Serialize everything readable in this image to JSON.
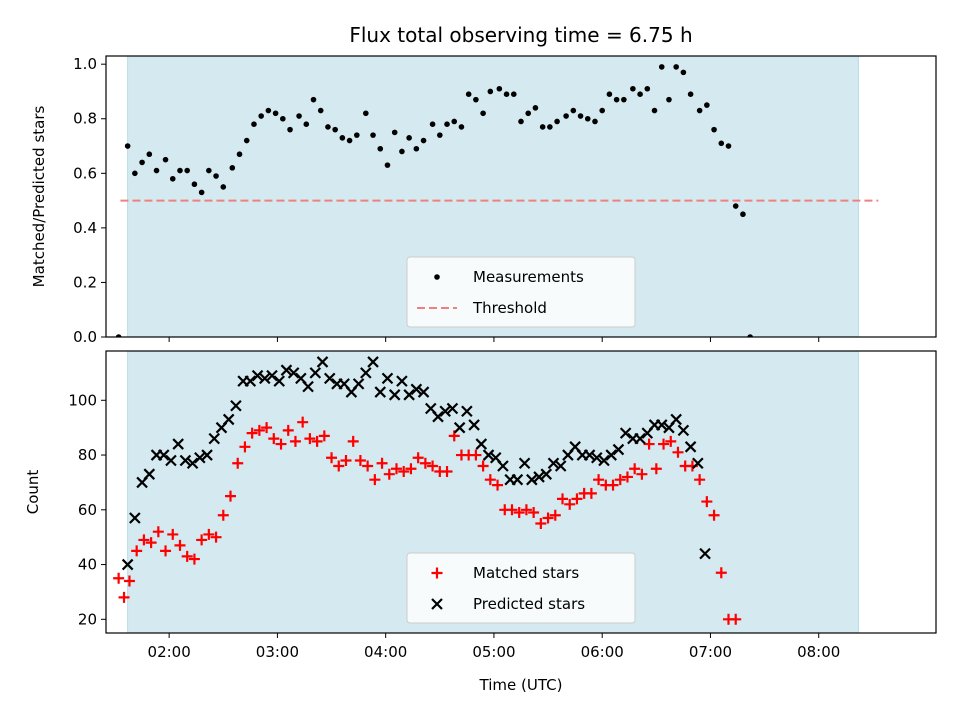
{
  "chart_data": [
    {
      "type": "scatter",
      "title": "Flux total observing time = 6.75 h",
      "xlabel": "",
      "ylabel": "Matched/Predicted stars",
      "xlim": [
        "01:25",
        "09:05"
      ],
      "ylim": [
        0,
        1.03
      ],
      "yticks": [
        "0.0",
        "0.2",
        "0.4",
        "0.6",
        "0.8",
        "1.0"
      ],
      "shaded_span": [
        "01:37",
        "08:22"
      ],
      "shade_color": "#d4eaf0",
      "legend_position": "lower center",
      "series": [
        {
          "name": "Measurements",
          "marker": "dot",
          "color": "#000000",
          "points": [
            [
              "01:32",
              0.0
            ],
            [
              "01:37",
              0.7
            ],
            [
              "01:41",
              0.6
            ],
            [
              "01:45",
              0.64
            ],
            [
              "01:49",
              0.67
            ],
            [
              "01:53",
              0.61
            ],
            [
              "01:58",
              0.65
            ],
            [
              "02:02",
              0.58
            ],
            [
              "02:06",
              0.61
            ],
            [
              "02:10",
              0.61
            ],
            [
              "02:14",
              0.56
            ],
            [
              "02:18",
              0.53
            ],
            [
              "02:22",
              0.61
            ],
            [
              "02:26",
              0.59
            ],
            [
              "02:30",
              0.55
            ],
            [
              "02:35",
              0.62
            ],
            [
              "02:39",
              0.67
            ],
            [
              "02:43",
              0.72
            ],
            [
              "02:47",
              0.78
            ],
            [
              "02:51",
              0.81
            ],
            [
              "02:55",
              0.83
            ],
            [
              "02:59",
              0.82
            ],
            [
              "03:03",
              0.8
            ],
            [
              "03:07",
              0.76
            ],
            [
              "03:12",
              0.81
            ],
            [
              "03:16",
              0.78
            ],
            [
              "03:20",
              0.87
            ],
            [
              "03:24",
              0.83
            ],
            [
              "03:28",
              0.77
            ],
            [
              "03:32",
              0.76
            ],
            [
              "03:36",
              0.73
            ],
            [
              "03:40",
              0.72
            ],
            [
              "03:44",
              0.74
            ],
            [
              "03:49",
              0.82
            ],
            [
              "03:53",
              0.74
            ],
            [
              "03:57",
              0.69
            ],
            [
              "04:01",
              0.63
            ],
            [
              "04:05",
              0.75
            ],
            [
              "04:09",
              0.68
            ],
            [
              "04:13",
              0.73
            ],
            [
              "04:17",
              0.69
            ],
            [
              "04:21",
              0.72
            ],
            [
              "04:26",
              0.78
            ],
            [
              "04:30",
              0.74
            ],
            [
              "04:34",
              0.78
            ],
            [
              "04:38",
              0.79
            ],
            [
              "04:42",
              0.77
            ],
            [
              "04:46",
              0.89
            ],
            [
              "04:50",
              0.87
            ],
            [
              "04:54",
              0.82
            ],
            [
              "04:58",
              0.9
            ],
            [
              "05:03",
              0.91
            ],
            [
              "05:07",
              0.89
            ],
            [
              "05:11",
              0.89
            ],
            [
              "05:15",
              0.79
            ],
            [
              "05:19",
              0.82
            ],
            [
              "05:23",
              0.84
            ],
            [
              "05:27",
              0.77
            ],
            [
              "05:31",
              0.77
            ],
            [
              "05:35",
              0.79
            ],
            [
              "05:40",
              0.81
            ],
            [
              "05:44",
              0.83
            ],
            [
              "05:48",
              0.81
            ],
            [
              "05:52",
              0.8
            ],
            [
              "05:56",
              0.79
            ],
            [
              "06:00",
              0.83
            ],
            [
              "06:04",
              0.89
            ],
            [
              "06:08",
              0.87
            ],
            [
              "06:12",
              0.87
            ],
            [
              "06:17",
              0.91
            ],
            [
              "06:21",
              0.89
            ],
            [
              "06:25",
              0.91
            ],
            [
              "06:29",
              0.83
            ],
            [
              "06:33",
              0.99
            ],
            [
              "06:37",
              0.87
            ],
            [
              "06:41",
              0.99
            ],
            [
              "06:45",
              0.97
            ],
            [
              "06:49",
              0.89
            ],
            [
              "06:54",
              0.83
            ],
            [
              "06:58",
              0.85
            ],
            [
              "07:02",
              0.76
            ],
            [
              "07:06",
              0.71
            ],
            [
              "07:10",
              0.7
            ],
            [
              "07:14",
              0.48
            ],
            [
              "07:18",
              0.45
            ],
            [
              "07:22",
              0.0
            ]
          ]
        },
        {
          "name": "Threshold",
          "line_style": "dashed",
          "color": "#f08080",
          "points": [
            [
              "01:33",
              0.5
            ],
            [
              "08:33",
              0.5
            ]
          ]
        }
      ]
    },
    {
      "type": "scatter",
      "title": "",
      "xlabel": "Time (UTC)",
      "ylabel": "Count",
      "xlim": [
        "01:25",
        "09:05"
      ],
      "ylim": [
        15,
        118
      ],
      "yticks": [
        "20",
        "40",
        "60",
        "80",
        "100"
      ],
      "xticks": [
        "02:00",
        "03:00",
        "04:00",
        "05:00",
        "06:00",
        "07:00",
        "08:00"
      ],
      "shaded_span": [
        "01:37",
        "08:22"
      ],
      "shade_color": "#d4eaf0",
      "legend_position": "lower center",
      "series": [
        {
          "name": "Matched stars",
          "marker": "plus",
          "color": "#ff0000",
          "points": [
            [
              "01:32",
              35
            ],
            [
              "01:35",
              28
            ],
            [
              "01:38",
              34
            ],
            [
              "01:42",
              45
            ],
            [
              "01:46",
              49
            ],
            [
              "01:50",
              48
            ],
            [
              "01:54",
              52
            ],
            [
              "01:58",
              45
            ],
            [
              "02:02",
              51
            ],
            [
              "02:06",
              47
            ],
            [
              "02:10",
              43
            ],
            [
              "02:14",
              42
            ],
            [
              "02:18",
              49
            ],
            [
              "02:22",
              51
            ],
            [
              "02:26",
              50
            ],
            [
              "02:30",
              58
            ],
            [
              "02:34",
              65
            ],
            [
              "02:38",
              77
            ],
            [
              "02:42",
              83
            ],
            [
              "02:46",
              88
            ],
            [
              "02:50",
              89
            ],
            [
              "02:54",
              90
            ],
            [
              "02:58",
              86
            ],
            [
              "03:02",
              84
            ],
            [
              "03:06",
              89
            ],
            [
              "03:10",
              85
            ],
            [
              "03:14",
              92
            ],
            [
              "03:18",
              86
            ],
            [
              "03:22",
              85
            ],
            [
              "03:26",
              87
            ],
            [
              "03:30",
              79
            ],
            [
              "03:34",
              76
            ],
            [
              "03:38",
              78
            ],
            [
              "03:42",
              85
            ],
            [
              "03:46",
              78
            ],
            [
              "03:50",
              76
            ],
            [
              "03:54",
              71
            ],
            [
              "03:58",
              77
            ],
            [
              "04:02",
              73
            ],
            [
              "04:06",
              75
            ],
            [
              "04:10",
              74
            ],
            [
              "04:14",
              75
            ],
            [
              "04:18",
              79
            ],
            [
              "04:22",
              77
            ],
            [
              "04:26",
              76
            ],
            [
              "04:30",
              74
            ],
            [
              "04:34",
              74
            ],
            [
              "04:38",
              87
            ],
            [
              "04:42",
              80
            ],
            [
              "04:46",
              80
            ],
            [
              "04:50",
              80
            ],
            [
              "04:54",
              76
            ],
            [
              "04:58",
              71
            ],
            [
              "05:02",
              69
            ],
            [
              "05:06",
              60
            ],
            [
              "05:10",
              60
            ],
            [
              "05:14",
              59
            ],
            [
              "05:18",
              60
            ],
            [
              "05:22",
              59
            ],
            [
              "05:26",
              55
            ],
            [
              "05:30",
              57
            ],
            [
              "05:34",
              58
            ],
            [
              "05:38",
              64
            ],
            [
              "05:42",
              62
            ],
            [
              "05:46",
              64
            ],
            [
              "05:50",
              66
            ],
            [
              "05:54",
              66
            ],
            [
              "05:58",
              71
            ],
            [
              "06:02",
              69
            ],
            [
              "06:06",
              69
            ],
            [
              "06:10",
              71
            ],
            [
              "06:14",
              72
            ],
            [
              "06:18",
              75
            ],
            [
              "06:22",
              73
            ],
            [
              "06:26",
              84
            ],
            [
              "06:30",
              75
            ],
            [
              "06:34",
              84
            ],
            [
              "06:38",
              85
            ],
            [
              "06:42",
              81
            ],
            [
              "06:46",
              76
            ],
            [
              "06:50",
              76
            ],
            [
              "06:54",
              71
            ],
            [
              "06:58",
              63
            ],
            [
              "07:02",
              58
            ],
            [
              "07:06",
              37
            ],
            [
              "07:10",
              20
            ],
            [
              "07:14",
              20
            ]
          ]
        },
        {
          "name": "Predicted stars",
          "marker": "x",
          "color": "#000000",
          "points": [
            [
              "01:37",
              40
            ],
            [
              "01:41",
              57
            ],
            [
              "01:45",
              70
            ],
            [
              "01:49",
              73
            ],
            [
              "01:53",
              80
            ],
            [
              "01:57",
              80
            ],
            [
              "02:01",
              78
            ],
            [
              "02:05",
              84
            ],
            [
              "02:09",
              78
            ],
            [
              "02:13",
              77
            ],
            [
              "02:17",
              79
            ],
            [
              "02:21",
              80
            ],
            [
              "02:25",
              86
            ],
            [
              "02:29",
              90
            ],
            [
              "02:33",
              93
            ],
            [
              "02:37",
              98
            ],
            [
              "02:41",
              107
            ],
            [
              "02:45",
              107
            ],
            [
              "02:49",
              109
            ],
            [
              "02:53",
              108
            ],
            [
              "02:57",
              109
            ],
            [
              "03:01",
              107
            ],
            [
              "03:05",
              111
            ],
            [
              "03:09",
              110
            ],
            [
              "03:13",
              108
            ],
            [
              "03:17",
              105
            ],
            [
              "03:21",
              110
            ],
            [
              "03:25",
              114
            ],
            [
              "03:29",
              108
            ],
            [
              "03:33",
              106
            ],
            [
              "03:37",
              106
            ],
            [
              "03:41",
              103
            ],
            [
              "03:45",
              106
            ],
            [
              "03:49",
              110
            ],
            [
              "03:53",
              114
            ],
            [
              "03:57",
              103
            ],
            [
              "04:01",
              108
            ],
            [
              "04:05",
              102
            ],
            [
              "04:09",
              107
            ],
            [
              "04:13",
              102
            ],
            [
              "04:17",
              104
            ],
            [
              "04:21",
              103
            ],
            [
              "04:25",
              97
            ],
            [
              "04:29",
              94
            ],
            [
              "04:33",
              96
            ],
            [
              "04:37",
              97
            ],
            [
              "04:41",
              90
            ],
            [
              "04:45",
              96
            ],
            [
              "04:49",
              91
            ],
            [
              "04:53",
              84
            ],
            [
              "04:57",
              80
            ],
            [
              "05:01",
              79
            ],
            [
              "05:05",
              76
            ],
            [
              "05:09",
              71
            ],
            [
              "05:13",
              71
            ],
            [
              "05:17",
              77
            ],
            [
              "05:21",
              71
            ],
            [
              "05:25",
              72
            ],
            [
              "05:29",
              73
            ],
            [
              "05:33",
              77
            ],
            [
              "05:37",
              76
            ],
            [
              "05:41",
              80
            ],
            [
              "05:45",
              83
            ],
            [
              "05:49",
              80
            ],
            [
              "05:53",
              80
            ],
            [
              "05:57",
              79
            ],
            [
              "06:01",
              78
            ],
            [
              "06:05",
              80
            ],
            [
              "06:09",
              82
            ],
            [
              "06:13",
              88
            ],
            [
              "06:17",
              86
            ],
            [
              "06:21",
              86
            ],
            [
              "06:25",
              88
            ],
            [
              "06:29",
              91
            ],
            [
              "06:33",
              91
            ],
            [
              "06:37",
              90
            ],
            [
              "06:41",
              93
            ],
            [
              "06:45",
              89
            ],
            [
              "06:49",
              83
            ],
            [
              "06:53",
              77
            ],
            [
              "06:57",
              44
            ]
          ]
        }
      ]
    }
  ]
}
